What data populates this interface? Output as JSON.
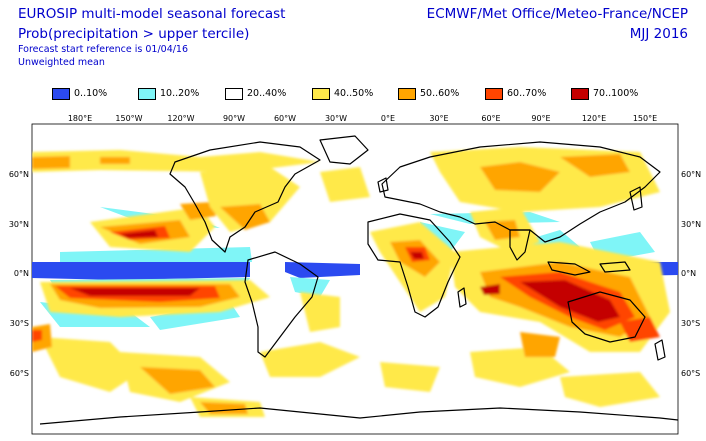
{
  "header": {
    "title": "EUROSIP multi-model seasonal forecast",
    "subtitle": "Prob(precipitation > upper tercile)",
    "start_reference": "Forecast start reference is 01/04/16",
    "weighting": "Unweighted mean",
    "centres": "ECMWF/Met Office/Meteo-France/NCEP",
    "period": "MJJ 2016"
  },
  "legend": [
    {
      "label": "0..10%",
      "color": "#2b4af0"
    },
    {
      "label": "10..20%",
      "color": "#7ff5f7"
    },
    {
      "label": "20..40%",
      "color": "#ffffff"
    },
    {
      "label": "40..50%",
      "color": "#ffe94a"
    },
    {
      "label": "50..60%",
      "color": "#ffa500"
    },
    {
      "label": "60..70%",
      "color": "#ff4500"
    },
    {
      "label": "70..100%",
      "color": "#c40000"
    }
  ],
  "map": {
    "lon_labels": [
      "180°E",
      "150°W",
      "120°W",
      "90°W",
      "60°W",
      "30°W",
      "0°E",
      "30°E",
      "60°E",
      "90°E",
      "120°E",
      "150°E"
    ],
    "lat_labels_left": [
      "60°N",
      "30°N",
      "0°N",
      "30°S",
      "60°S"
    ],
    "lat_labels_right": [
      "60°N",
      "30°N",
      "0°N",
      "30°S",
      "60°S"
    ]
  }
}
